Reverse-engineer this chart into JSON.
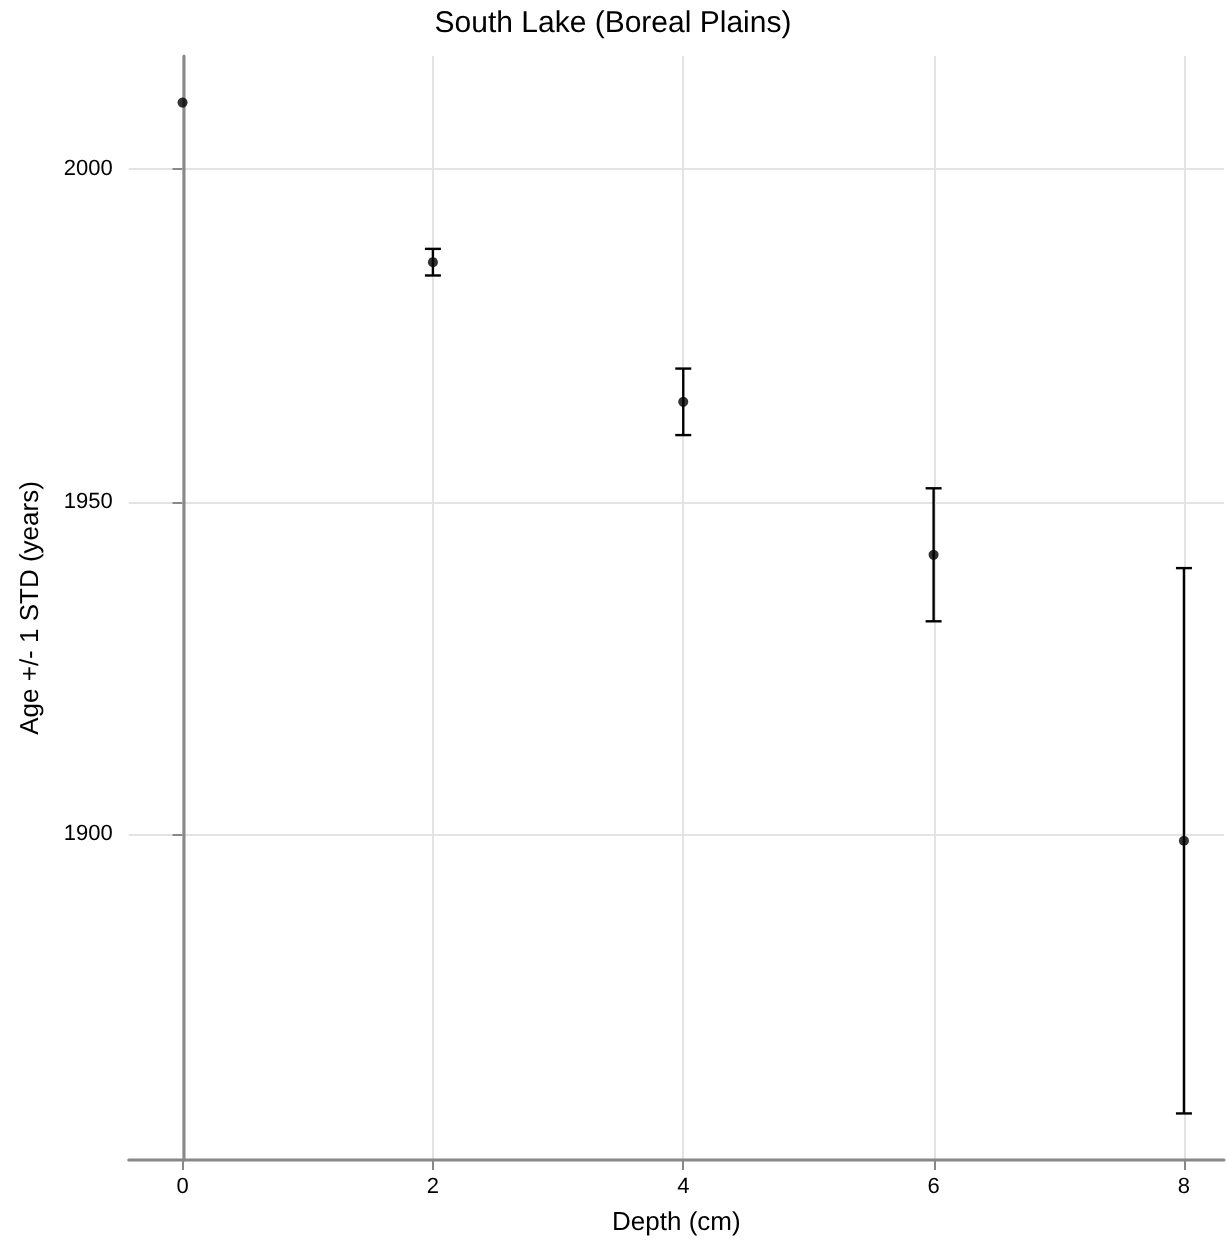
{
  "chart_data": {
    "type": "scatter",
    "title": "South Lake (Boreal Plains)",
    "xlabel": "Depth (cm)",
    "ylabel": "Age +/- 1 STD (years)",
    "x": [
      0,
      2,
      4,
      6,
      8
    ],
    "values": [
      2010,
      1986,
      1965,
      1942,
      1899
    ],
    "errors": [
      null,
      2,
      5,
      10,
      41
    ],
    "color": "#000000",
    "marker": "circle",
    "grid": true,
    "xlim": [
      -0.43,
      8.32
    ],
    "xticks": [
      0,
      2,
      4,
      6,
      8
    ],
    "ylim": [
      1851,
      2017
    ],
    "yticks": [
      1900,
      1950,
      2000
    ]
  }
}
